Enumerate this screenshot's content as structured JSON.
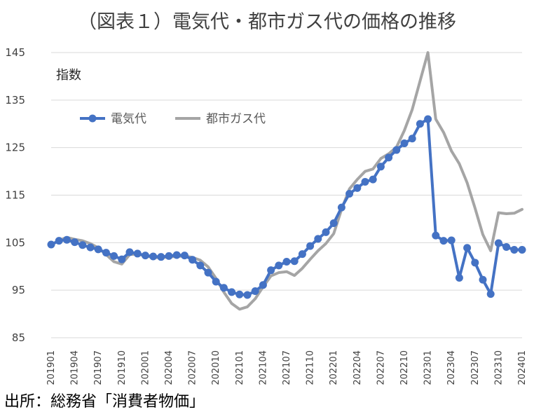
{
  "chart_data": {
    "type": "line",
    "title": "（図表１）電気代・都市ガス代の価格の推移",
    "ylabel": "指数",
    "xlabel": "",
    "ylim": [
      85,
      145
    ],
    "yticks": [
      85,
      95,
      105,
      115,
      125,
      135,
      145
    ],
    "xtick_labels": [
      "201901",
      "201904",
      "201907",
      "201910",
      "202001",
      "202004",
      "202007",
      "202010",
      "202101",
      "202104",
      "202107",
      "202110",
      "202201",
      "202204",
      "202207",
      "202210",
      "202301",
      "202304",
      "202307",
      "202310",
      "202401"
    ],
    "x": [
      "201901",
      "201902",
      "201903",
      "201904",
      "201905",
      "201906",
      "201907",
      "201908",
      "201909",
      "201910",
      "201911",
      "201912",
      "202001",
      "202002",
      "202003",
      "202004",
      "202005",
      "202006",
      "202007",
      "202008",
      "202009",
      "202010",
      "202011",
      "202012",
      "202101",
      "202102",
      "202103",
      "202104",
      "202105",
      "202106",
      "202107",
      "202108",
      "202109",
      "202110",
      "202111",
      "202112",
      "202201",
      "202202",
      "202203",
      "202204",
      "202205",
      "202206",
      "202207",
      "202208",
      "202209",
      "202210",
      "202211",
      "202212",
      "202301",
      "202302",
      "202303",
      "202304",
      "202305",
      "202306",
      "202307",
      "202308",
      "202309",
      "202310",
      "202311",
      "202312",
      "202401"
    ],
    "series": [
      {
        "name": "電気代",
        "color": "#4472c4",
        "marker": true,
        "values": [
          104.6,
          105.4,
          105.6,
          105.1,
          104.5,
          104.0,
          103.6,
          102.9,
          102.2,
          101.5,
          103.0,
          102.7,
          102.3,
          102.1,
          102.0,
          102.2,
          102.4,
          102.3,
          101.4,
          100.2,
          98.7,
          96.8,
          95.5,
          94.6,
          94.1,
          94.0,
          94.8,
          96.1,
          99.2,
          100.2,
          101.0,
          101.1,
          102.6,
          104.3,
          105.8,
          107.2,
          109.1,
          112.4,
          115.3,
          116.5,
          117.8,
          118.3,
          121.0,
          122.9,
          124.5,
          125.9,
          126.9,
          130.0,
          131.0,
          106.5,
          105.4,
          105.5,
          97.6,
          103.9,
          100.8,
          97.2,
          94.2,
          104.9,
          104.1,
          103.5,
          103.5
        ]
      },
      {
        "name": "都市ガス代",
        "color": "#a5a5a5",
        "marker": false,
        "values": [
          104.5,
          105.5,
          106.1,
          105.7,
          105.4,
          104.8,
          103.9,
          102.5,
          101.0,
          100.5,
          102.5,
          102.6,
          102.2,
          101.9,
          101.8,
          102.0,
          102.1,
          102.2,
          101.9,
          101.3,
          99.9,
          97.5,
          94.6,
          92.2,
          91.0,
          91.5,
          93.2,
          95.7,
          98.0,
          98.7,
          98.9,
          98.1,
          99.6,
          101.5,
          103.3,
          104.8,
          106.9,
          112.0,
          116.3,
          118.3,
          120.0,
          120.5,
          122.7,
          123.7,
          125.1,
          128.6,
          133.0,
          139.0,
          145.0,
          131.0,
          128.2,
          124.3,
          121.6,
          117.6,
          112.3,
          106.7,
          103.3,
          111.3,
          111.1,
          111.2,
          112.0
        ]
      }
    ],
    "legend_position": "top-left-inside",
    "grid": true
  },
  "source_note": "出所：総務省「消費者物価」"
}
